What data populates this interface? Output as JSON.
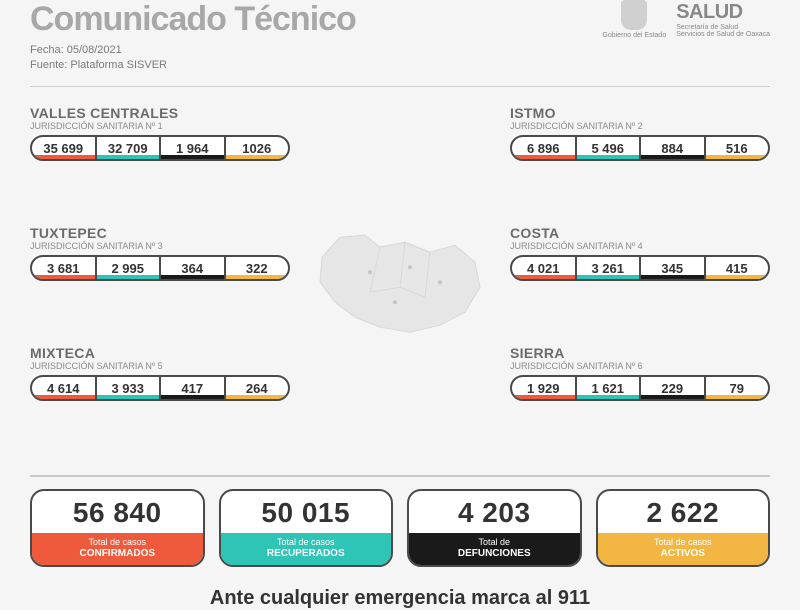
{
  "header": {
    "title": "Comunicado Técnico",
    "date_label": "Fecha:",
    "date": "05/08/2021",
    "source_label": "Fuente:",
    "source": "Plataforma SISVER",
    "gov_label": "Gobierno del Estado",
    "salud_big": "SALUD",
    "salud_line1": "Secretaría de Salud",
    "salud_line2": "Servicios de Salud de Oaxaca"
  },
  "colors": {
    "confirmed": "#f05a3c",
    "recovered": "#2ec4b6",
    "deaths": "#1a1a1a",
    "active": "#f4b642"
  },
  "regions": [
    {
      "name": "VALLES CENTRALES",
      "sub": "JURISDICCIÓN SANITARIA Nº 1",
      "vals": [
        "35 699",
        "32 709",
        "1 964",
        "1026"
      ]
    },
    {
      "name": "ISTMO",
      "sub": "JURISDICCIÓN SANITARIA Nº 2",
      "vals": [
        "6 896",
        "5 496",
        "884",
        "516"
      ]
    },
    {
      "name": "TUXTEPEC",
      "sub": "JURISDICCIÓN SANITARIA Nº 3",
      "vals": [
        "3 681",
        "2 995",
        "364",
        "322"
      ]
    },
    {
      "name": "COSTA",
      "sub": "JURISDICCIÓN SANITARIA Nº 4",
      "vals": [
        "4 021",
        "3 261",
        "345",
        "415"
      ]
    },
    {
      "name": "MIXTECA",
      "sub": "JURISDICCIÓN SANITARIA Nº 5",
      "vals": [
        "4 614",
        "3 933",
        "417",
        "264"
      ]
    },
    {
      "name": "SIERRA",
      "sub": "JURISDICCIÓN SANITARIA Nº 6",
      "vals": [
        "1 929",
        "1 621",
        "229",
        "79"
      ]
    }
  ],
  "totals": [
    {
      "num": "56 840",
      "l1": "Total de casos",
      "l2": "CONFIRMADOS",
      "color": "#f05a3c"
    },
    {
      "num": "50 015",
      "l1": "Total de casos",
      "l2": "RECUPERADOS",
      "color": "#2ec4b6"
    },
    {
      "num": "4 203",
      "l1": "Total de",
      "l2": "DEFUNCIONES",
      "color": "#1a1a1a"
    },
    {
      "num": "2 622",
      "l1": "Total de casos",
      "l2": "ACTIVOS",
      "color": "#f4b642"
    }
  ],
  "footer": "Ante cualquier emergencia marca al 911"
}
